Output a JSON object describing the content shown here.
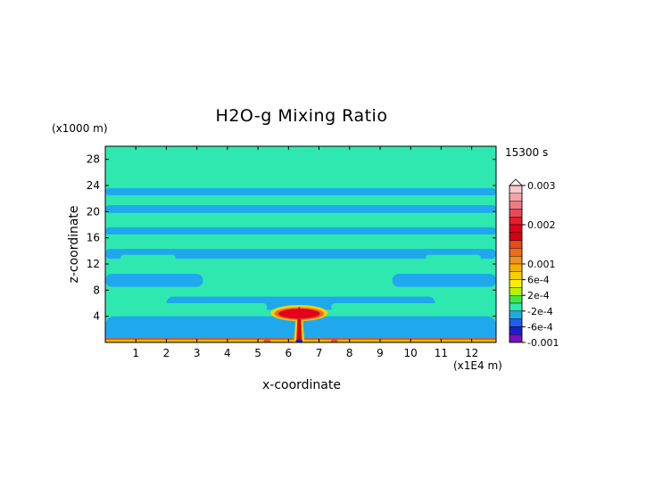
{
  "chart_data": {
    "type": "heatmap",
    "title": "H2O-g Mixing Ratio",
    "xlabel": "x-coordinate",
    "ylabel": "z-coordinate",
    "x_unit": "(x1E4 m)",
    "y_unit": "(x1000 m)",
    "time_label": "15300 s",
    "xlim": [
      0,
      12.8
    ],
    "ylim": [
      0,
      30
    ],
    "x_ticks": [
      1,
      2,
      3,
      4,
      5,
      6,
      7,
      8,
      9,
      10,
      11,
      12
    ],
    "y_ticks": [
      4,
      8,
      12,
      16,
      20,
      24,
      28
    ],
    "colorbar": {
      "min": -0.001,
      "max": 0.003,
      "labels": [
        {
          "value": 0.003,
          "text": "0.003"
        },
        {
          "value": 0.002,
          "text": "0.002"
        },
        {
          "value": 0.001,
          "text": "0.001"
        },
        {
          "value": 0.0006,
          "text": "6e-4"
        },
        {
          "value": 0.0002,
          "text": "2e-4"
        },
        {
          "value": -0.0002,
          "text": "-2e-4"
        },
        {
          "value": -0.0006,
          "text": "-6e-4"
        },
        {
          "value": -0.001,
          "text": "-0.001"
        }
      ],
      "bands": [
        {
          "from": 0.0028,
          "to": 0.003,
          "color": "#f8c8cc"
        },
        {
          "from": 0.0026,
          "to": 0.0028,
          "color": "#f4a3ab"
        },
        {
          "from": 0.0024,
          "to": 0.0026,
          "color": "#ee7a86"
        },
        {
          "from": 0.0022,
          "to": 0.0024,
          "color": "#e84a5a"
        },
        {
          "from": 0.002,
          "to": 0.0022,
          "color": "#e61e2c"
        },
        {
          "from": 0.0018,
          "to": 0.002,
          "color": "#e2001a"
        },
        {
          "from": 0.0016,
          "to": 0.0018,
          "color": "#d60010"
        },
        {
          "from": 0.0014,
          "to": 0.0016,
          "color": "#e84a1a"
        },
        {
          "from": 0.0012,
          "to": 0.0014,
          "color": "#f06a20"
        },
        {
          "from": 0.001,
          "to": 0.0012,
          "color": "#f39020"
        },
        {
          "from": 0.0008,
          "to": 0.001,
          "color": "#f5b000"
        },
        {
          "from": 0.0006,
          "to": 0.0008,
          "color": "#f8d000"
        },
        {
          "from": 0.0004,
          "to": 0.0006,
          "color": "#f6f000"
        },
        {
          "from": 0.0002,
          "to": 0.0004,
          "color": "#b8f000"
        },
        {
          "from": 0.0,
          "to": 0.0002,
          "color": "#3ee84a"
        },
        {
          "from": -0.0002,
          "to": 0.0,
          "color": "#2fe8b0"
        },
        {
          "from": -0.0004,
          "to": -0.0002,
          "color": "#1fa8ee"
        },
        {
          "from": -0.0006,
          "to": -0.0004,
          "color": "#1f5ee8"
        },
        {
          "from": -0.0008,
          "to": -0.0006,
          "color": "#1a20c8"
        },
        {
          "from": -0.001,
          "to": -0.0008,
          "color": "#7a10c0"
        }
      ]
    },
    "field_colors": {
      "background": "#2fe8b0",
      "band": "#1fa8ee",
      "surface": "#f5b000",
      "surface_edge": "#e84a1a",
      "plume_outer": "#f8d000",
      "plume_mid": "#f06a20",
      "plume_core": "#e2001a",
      "plume_base": "#1a20c8"
    },
    "regions": [
      {
        "kind": "band",
        "x": [
          0.0,
          12.8
        ],
        "y": [
          0.0,
          4.0
        ]
      },
      {
        "kind": "band",
        "x": [
          0.0,
          3.2
        ],
        "y": [
          8.5,
          10.5
        ]
      },
      {
        "kind": "band",
        "x": [
          9.4,
          12.8
        ],
        "y": [
          8.5,
          10.5
        ]
      },
      {
        "kind": "band",
        "x": [
          0.0,
          12.8
        ],
        "y": [
          12.8,
          14.3
        ]
      },
      {
        "kind": "band",
        "x": [
          0.0,
          12.8
        ],
        "y": [
          16.5,
          17.6
        ]
      },
      {
        "kind": "band",
        "x": [
          0.0,
          12.8
        ],
        "y": [
          19.8,
          21.0
        ]
      },
      {
        "kind": "band",
        "x": [
          0.0,
          12.8
        ],
        "y": [
          22.5,
          23.6
        ]
      },
      {
        "kind": "band",
        "x": [
          2.0,
          10.8
        ],
        "y": [
          5.0,
          7.0
        ]
      },
      {
        "kind": "background",
        "x": [
          1.0,
          5.3
        ],
        "y": [
          4.8,
          6.0
        ]
      },
      {
        "kind": "background",
        "x": [
          7.4,
          12.0
        ],
        "y": [
          4.8,
          6.0
        ]
      },
      {
        "kind": "background",
        "x": [
          3.8,
          8.6
        ],
        "y": [
          8.2,
          10.8
        ]
      },
      {
        "kind": "background",
        "x": [
          0.5,
          2.3
        ],
        "y": [
          12.4,
          13.4
        ]
      },
      {
        "kind": "background",
        "x": [
          10.5,
          12.3
        ],
        "y": [
          12.4,
          13.4
        ]
      },
      {
        "kind": "background",
        "x": [
          5.0,
          7.8
        ],
        "y": [
          15.6,
          16.4
        ]
      },
      {
        "kind": "background",
        "x": [
          1.4,
          4.0
        ],
        "y": [
          18.2,
          19.0
        ]
      },
      {
        "kind": "background",
        "x": [
          8.8,
          11.4
        ],
        "y": [
          18.2,
          19.0
        ]
      },
      {
        "kind": "background",
        "x": [
          5.8,
          6.8
        ],
        "y": [
          27.4,
          28.2
        ]
      }
    ],
    "plume": {
      "x": 6.35,
      "y_base": 0.0,
      "y_top": 5.4,
      "x_width": 1.7
    }
  }
}
